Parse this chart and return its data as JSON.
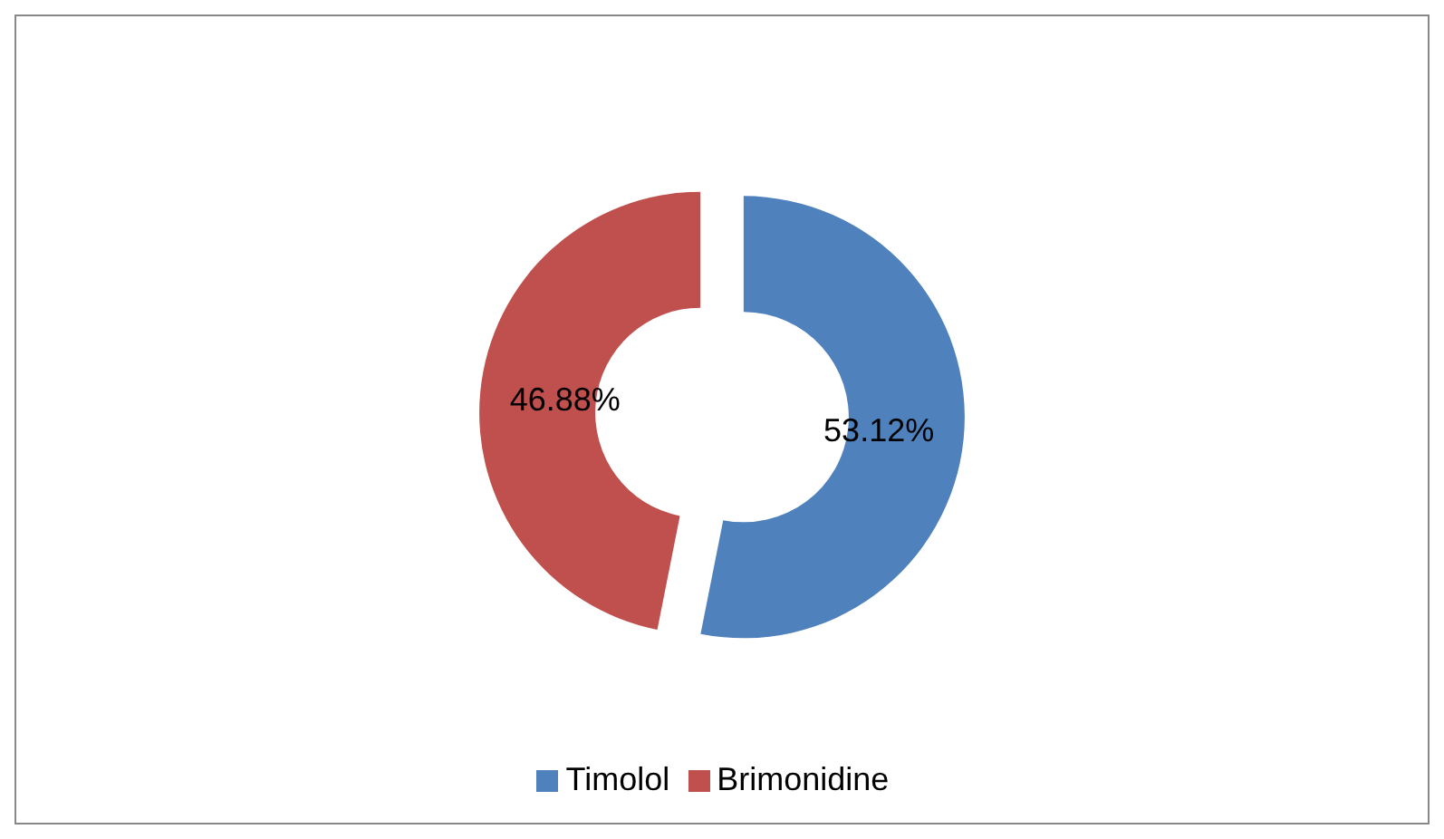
{
  "chart_data": {
    "type": "donut",
    "categories": [
      "Timolol",
      "Brimonidine"
    ],
    "values": [
      53.12,
      46.88
    ],
    "colors": [
      "#4f81bd",
      "#c0504d"
    ],
    "value_labels": [
      "53.12%",
      "46.88%"
    ],
    "legend": "bottom"
  }
}
